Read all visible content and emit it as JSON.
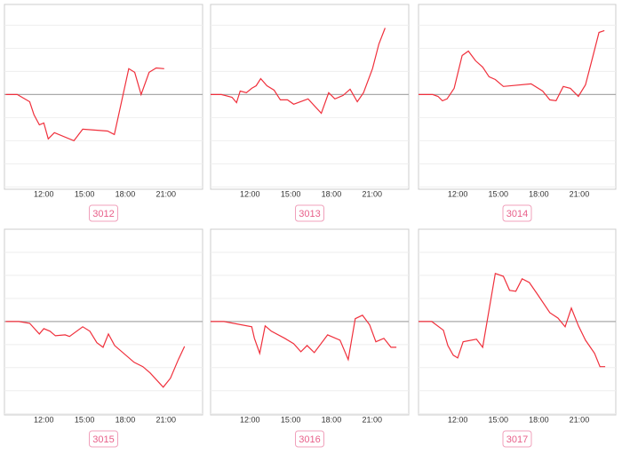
{
  "chart_data": [
    {
      "type": "line",
      "label": "3012",
      "color": "#f0303c",
      "xlim": [
        9.1,
        23.7
      ],
      "ylim": [
        -4.1,
        3.9
      ],
      "yticks": [
        -4,
        -3,
        -2,
        -1,
        0,
        1,
        2,
        3
      ],
      "xticks": [
        {
          "value": 12,
          "label": "12:00"
        },
        {
          "value": 15,
          "label": "15:00"
        },
        {
          "value": 18,
          "label": "18:00"
        },
        {
          "value": 21,
          "label": "21:00"
        }
      ],
      "x": [
        9.2,
        10.04,
        10.96,
        11.28,
        11.67,
        12,
        12.33,
        12.78,
        14.22,
        14.87,
        16.7,
        17.2,
        18.26,
        18.7,
        19.17,
        19.76,
        20.28,
        20.87
      ],
      "values": [
        0,
        0,
        -0.31,
        -0.88,
        -1.31,
        -1.23,
        -1.92,
        -1.65,
        -2.0,
        -1.5,
        -1.58,
        -1.73,
        1.12,
        0.96,
        0,
        0.96,
        1.15,
        1.12
      ]
    },
    {
      "type": "line",
      "label": "3013",
      "color": "#f0303c",
      "xlim": [
        9.1,
        23.7
      ],
      "ylim": [
        -4.1,
        3.9
      ],
      "yticks": [
        -4,
        -3,
        -2,
        -1,
        0,
        1,
        2,
        3
      ],
      "xticks": [
        {
          "value": 12,
          "label": "12:00"
        },
        {
          "value": 15,
          "label": "15:00"
        },
        {
          "value": 18,
          "label": "18:00"
        },
        {
          "value": 21,
          "label": "21:00"
        }
      ],
      "x": [
        9.1,
        9.89,
        10.68,
        11.01,
        11.28,
        11.74,
        12.13,
        12.46,
        12.79,
        13.25,
        13.78,
        14.24,
        14.76,
        15.22,
        16.28,
        17.26,
        17.8,
        18.26,
        18.86,
        19.38,
        19.91,
        20.37,
        21.03,
        21.5,
        21.96
      ],
      "values": [
        0,
        0,
        -0.12,
        -0.35,
        0.15,
        0.08,
        0.27,
        0.38,
        0.69,
        0.38,
        0.19,
        -0.23,
        -0.23,
        -0.42,
        -0.19,
        -0.81,
        0.08,
        -0.19,
        -0.04,
        0.23,
        -0.31,
        0.08,
        1.12,
        2.19,
        2.88
      ]
    },
    {
      "type": "line",
      "label": "3014",
      "color": "#f0303c",
      "xlim": [
        9.1,
        23.7
      ],
      "ylim": [
        -4.1,
        3.9
      ],
      "yticks": [
        -4,
        -3,
        -2,
        -1,
        0,
        1,
        2,
        3
      ],
      "xticks": [
        {
          "value": 12,
          "label": "12:00"
        },
        {
          "value": 15,
          "label": "15:00"
        },
        {
          "value": 18,
          "label": "18:00"
        },
        {
          "value": 21,
          "label": "21:00"
        }
      ],
      "x": [
        9.1,
        10.15,
        10.54,
        10.87,
        11.21,
        11.74,
        12.33,
        12.79,
        13.32,
        13.85,
        14.32,
        14.78,
        15.38,
        17.43,
        18.29,
        18.82,
        19.28,
        19.81,
        20.34,
        20.93,
        21.46,
        21.99,
        22.46,
        22.86
      ],
      "values": [
        0,
        0,
        -0.08,
        -0.27,
        -0.19,
        0.27,
        1.69,
        1.88,
        1.46,
        1.19,
        0.77,
        0.65,
        0.35,
        0.46,
        0.15,
        -0.23,
        -0.27,
        0.35,
        0.27,
        -0.08,
        0.42,
        1.62,
        2.69,
        2.77
      ]
    },
    {
      "type": "line",
      "label": "3015",
      "color": "#f0303c",
      "xlim": [
        9.1,
        23.7
      ],
      "ylim": [
        -4.05,
        4
      ],
      "yticks": [
        -4,
        -3,
        -2,
        -1,
        0,
        1,
        2,
        3
      ],
      "xticks": [
        {
          "value": 12,
          "label": "12:00"
        },
        {
          "value": 15,
          "label": "15:00"
        },
        {
          "value": 18,
          "label": "18:00"
        },
        {
          "value": 21,
          "label": "21:00"
        }
      ],
      "x": [
        9.2,
        10.17,
        10.96,
        11.67,
        12,
        12.46,
        12.85,
        13.57,
        13.89,
        14.87,
        15.39,
        15.91,
        16.37,
        16.76,
        17.22,
        18.65,
        19.3,
        19.83,
        20.8,
        21.33,
        21.91,
        22.37
      ],
      "values": [
        0,
        0,
        -0.08,
        -0.54,
        -0.31,
        -0.42,
        -0.62,
        -0.58,
        -0.65,
        -0.23,
        -0.42,
        -0.92,
        -1.12,
        -0.54,
        -1.04,
        -1.77,
        -1.96,
        -2.23,
        -2.85,
        -2.46,
        -1.65,
        -1.08
      ]
    },
    {
      "type": "line",
      "label": "3016",
      "color": "#f0303c",
      "xlim": [
        9.1,
        23.7
      ],
      "ylim": [
        -4.05,
        4
      ],
      "yticks": [
        -4,
        -3,
        -2,
        -1,
        0,
        1,
        2,
        3
      ],
      "xticks": [
        {
          "value": 12,
          "label": "12:00"
        },
        {
          "value": 15,
          "label": "15:00"
        },
        {
          "value": 18,
          "label": "18:00"
        },
        {
          "value": 21,
          "label": "21:00"
        }
      ],
      "x": [
        9.1,
        10.09,
        12.13,
        12.33,
        12.72,
        13.12,
        13.58,
        14.57,
        15.22,
        15.75,
        16.21,
        16.74,
        17.72,
        18.64,
        19.24,
        19.76,
        20.29,
        20.82,
        21.28,
        21.87,
        22.39,
        22.79
      ],
      "values": [
        0,
        0,
        -0.23,
        -0.73,
        -1.38,
        -0.19,
        -0.42,
        -0.73,
        -0.96,
        -1.31,
        -1.04,
        -1.35,
        -0.58,
        -0.81,
        -1.65,
        0.12,
        0.27,
        -0.15,
        -0.88,
        -0.73,
        -1.12,
        -1.12
      ]
    },
    {
      "type": "line",
      "label": "3017",
      "color": "#f0303c",
      "xlim": [
        9.1,
        23.7
      ],
      "ylim": [
        -4.05,
        4
      ],
      "yticks": [
        -4,
        -3,
        -2,
        -1,
        0,
        1,
        2,
        3
      ],
      "xticks": [
        {
          "value": 12,
          "label": "12:00"
        },
        {
          "value": 15,
          "label": "15:00"
        },
        {
          "value": 18,
          "label": "18:00"
        },
        {
          "value": 21,
          "label": "21:00"
        }
      ],
      "x": [
        9.1,
        10.08,
        10.94,
        11.27,
        11.67,
        12,
        12.4,
        13.39,
        13.85,
        14.78,
        15.38,
        15.84,
        16.3,
        16.77,
        17.3,
        17.89,
        18.82,
        19.42,
        19.95,
        20.41,
        20.94,
        21.46,
        22.13,
        22.53,
        22.92
      ],
      "values": [
        0,
        0,
        -0.38,
        -1.04,
        -1.46,
        -1.58,
        -0.88,
        -0.77,
        -1.12,
        2.08,
        1.96,
        1.35,
        1.31,
        1.85,
        1.69,
        1.19,
        0.38,
        0.15,
        -0.23,
        0.58,
        -0.19,
        -0.81,
        -1.38,
        -1.96,
        -1.96
      ]
    }
  ]
}
